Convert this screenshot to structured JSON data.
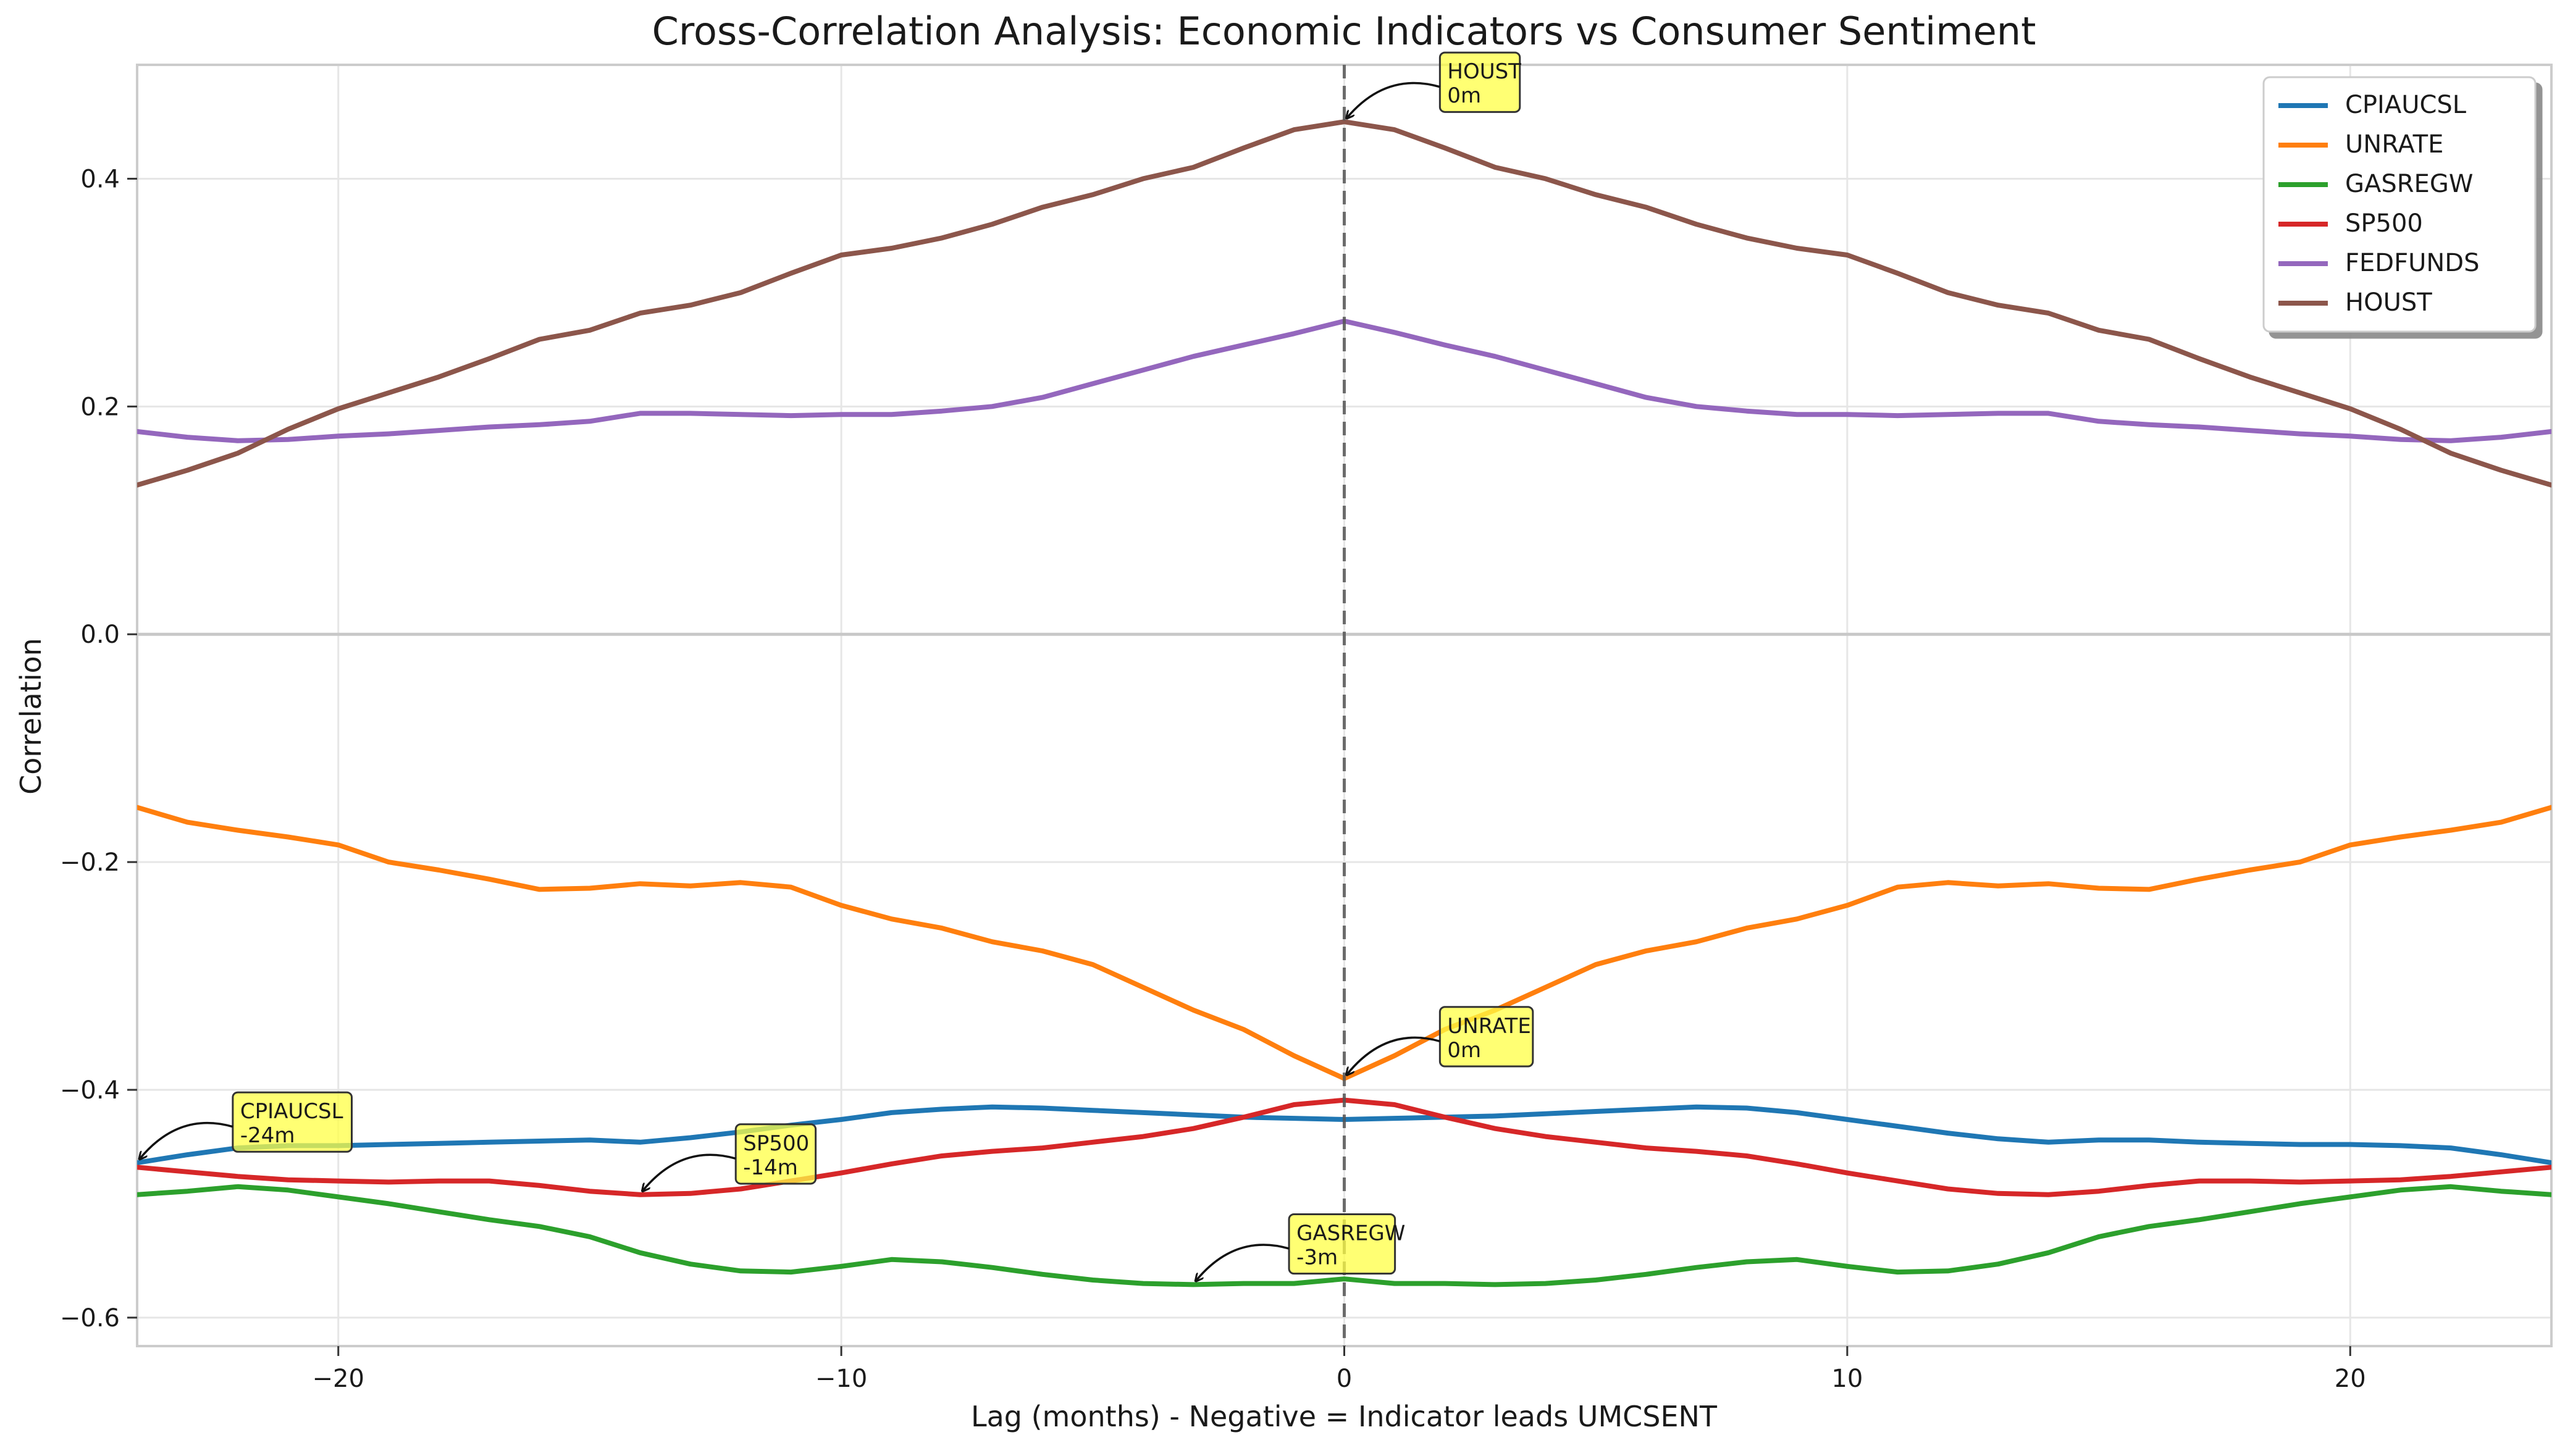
{
  "chart_data": {
    "type": "line",
    "title": "Cross-Correlation Analysis: Economic Indicators vs Consumer Sentiment",
    "xlabel": "Lag (months) - Negative = Indicator leads UMCSENT",
    "ylabel": "Correlation",
    "xlim": [
      -24,
      24
    ],
    "ylim": [
      -0.625,
      0.5
    ],
    "xticks": [
      -20,
      -10,
      0,
      10,
      20
    ],
    "xtick_labels": [
      "−20",
      "−10",
      "0",
      "10",
      "20"
    ],
    "yticks": [
      -0.6,
      -0.4,
      -0.2,
      0.0,
      0.2,
      0.4
    ],
    "ytick_labels": [
      "−0.6",
      "−0.4",
      "−0.2",
      "0.0",
      "0.2",
      "0.4"
    ],
    "grid": true,
    "zero_line": true,
    "vertical_line_at": 0,
    "legend_position": "top-right",
    "x": [
      -24,
      -23,
      -22,
      -21,
      -20,
      -19,
      -18,
      -17,
      -16,
      -15,
      -14,
      -13,
      -12,
      -11,
      -10,
      -9,
      -8,
      -7,
      -6,
      -5,
      -4,
      -3,
      -2,
      -1,
      0,
      1,
      2,
      3,
      4,
      5,
      6,
      7,
      8,
      9,
      10,
      11,
      12,
      13,
      14,
      15,
      16,
      17,
      18,
      19,
      20,
      21,
      22,
      23,
      24
    ],
    "series": [
      {
        "name": "CPIAUCSL",
        "color": "#1f77b4",
        "values": [
          -0.464,
          -0.457,
          -0.451,
          -0.449,
          -0.449,
          -0.448,
          -0.447,
          -0.446,
          -0.445,
          -0.444,
          -0.446,
          -0.442,
          -0.437,
          -0.431,
          -0.426,
          -0.42,
          -0.417,
          -0.415,
          -0.416,
          -0.418,
          -0.42,
          -0.422,
          -0.424,
          -0.425,
          -0.426,
          -0.425,
          -0.424,
          -0.423,
          -0.421,
          -0.419,
          -0.417,
          -0.415,
          -0.416,
          -0.42,
          -0.426,
          -0.432,
          -0.438,
          -0.443,
          -0.446,
          -0.444,
          -0.444,
          -0.446,
          -0.447,
          -0.448,
          -0.448,
          -0.449,
          -0.451,
          -0.457,
          -0.464
        ]
      },
      {
        "name": "UNRATE",
        "color": "#ff7f0e",
        "values": [
          -0.152,
          -0.165,
          -0.172,
          -0.178,
          -0.185,
          -0.2,
          -0.207,
          -0.215,
          -0.224,
          -0.223,
          -0.219,
          -0.221,
          -0.218,
          -0.222,
          -0.238,
          -0.25,
          -0.258,
          -0.27,
          -0.278,
          -0.29,
          -0.31,
          -0.33,
          -0.347,
          -0.37,
          -0.39,
          -0.37,
          -0.347,
          -0.33,
          -0.31,
          -0.29,
          -0.278,
          -0.27,
          -0.258,
          -0.25,
          -0.238,
          -0.222,
          -0.218,
          -0.221,
          -0.219,
          -0.223,
          -0.224,
          -0.215,
          -0.207,
          -0.2,
          -0.185,
          -0.178,
          -0.172,
          -0.165,
          -0.152
        ]
      },
      {
        "name": "GASREGW",
        "color": "#2ca02c",
        "values": [
          -0.492,
          -0.489,
          -0.485,
          -0.488,
          -0.494,
          -0.5,
          -0.507,
          -0.514,
          -0.52,
          -0.529,
          -0.543,
          -0.553,
          -0.559,
          -0.56,
          -0.555,
          -0.549,
          -0.551,
          -0.556,
          -0.562,
          -0.567,
          -0.57,
          -0.571,
          -0.57,
          -0.57,
          -0.566,
          -0.57,
          -0.57,
          -0.571,
          -0.57,
          -0.567,
          -0.562,
          -0.556,
          -0.551,
          -0.549,
          -0.555,
          -0.56,
          -0.559,
          -0.553,
          -0.543,
          -0.529,
          -0.52,
          -0.514,
          -0.507,
          -0.5,
          -0.494,
          -0.488,
          -0.485,
          -0.489,
          -0.492
        ]
      },
      {
        "name": "SP500",
        "color": "#d62728",
        "values": [
          -0.468,
          -0.472,
          -0.476,
          -0.479,
          -0.48,
          -0.481,
          -0.48,
          -0.48,
          -0.484,
          -0.489,
          -0.492,
          -0.491,
          -0.487,
          -0.48,
          -0.473,
          -0.465,
          -0.458,
          -0.454,
          -0.451,
          -0.446,
          -0.441,
          -0.434,
          -0.424,
          -0.413,
          -0.409,
          -0.413,
          -0.424,
          -0.434,
          -0.441,
          -0.446,
          -0.451,
          -0.454,
          -0.458,
          -0.465,
          -0.473,
          -0.48,
          -0.487,
          -0.491,
          -0.492,
          -0.489,
          -0.484,
          -0.48,
          -0.48,
          -0.481,
          -0.48,
          -0.479,
          -0.476,
          -0.472,
          -0.468
        ]
      },
      {
        "name": "FEDFUNDS",
        "color": "#9467bd",
        "values": [
          0.178,
          0.173,
          0.17,
          0.171,
          0.174,
          0.176,
          0.179,
          0.182,
          0.184,
          0.187,
          0.194,
          0.194,
          0.193,
          0.192,
          0.193,
          0.193,
          0.196,
          0.2,
          0.208,
          0.22,
          0.232,
          0.244,
          0.254,
          0.264,
          0.275,
          0.265,
          0.254,
          0.244,
          0.232,
          0.22,
          0.208,
          0.2,
          0.196,
          0.193,
          0.193,
          0.192,
          0.193,
          0.194,
          0.194,
          0.187,
          0.184,
          0.182,
          0.179,
          0.176,
          0.174,
          0.171,
          0.17,
          0.173,
          0.178
        ]
      },
      {
        "name": "HOUST",
        "color": "#8c564b",
        "values": [
          0.131,
          0.144,
          0.159,
          0.18,
          0.198,
          0.212,
          0.226,
          0.242,
          0.259,
          0.267,
          0.282,
          0.289,
          0.3,
          0.317,
          0.333,
          0.339,
          0.348,
          0.36,
          0.375,
          0.386,
          0.4,
          0.41,
          0.427,
          0.443,
          0.45,
          0.443,
          0.427,
          0.41,
          0.4,
          0.386,
          0.375,
          0.36,
          0.348,
          0.339,
          0.333,
          0.317,
          0.3,
          0.289,
          0.282,
          0.267,
          0.259,
          0.242,
          0.226,
          0.212,
          0.198,
          0.18,
          0.159,
          0.144,
          0.131
        ]
      }
    ],
    "annotations": [
      {
        "series": "HOUST",
        "line1": "HOUST",
        "line2": "0m",
        "x": 0,
        "y": 0.45,
        "text_x": 2.0,
        "text_y": 0.488
      },
      {
        "series": "UNRATE",
        "line1": "UNRATE",
        "line2": "0m",
        "x": 0,
        "y": -0.39,
        "text_x": 2.0,
        "text_y": -0.35
      },
      {
        "series": "CPIAUCSL",
        "line1": "CPIAUCSL",
        "line2": "-24m",
        "x": -24,
        "y": -0.464,
        "text_x": -22.0,
        "text_y": -0.425
      },
      {
        "series": "SP500",
        "line1": "SP500",
        "line2": "-14m",
        "x": -14,
        "y": -0.492,
        "text_x": -12.0,
        "text_y": -0.453
      },
      {
        "series": "GASREGW",
        "line1": "GASREGW",
        "line2": "-3m",
        "x": -3,
        "y": -0.571,
        "text_x": -1.0,
        "text_y": -0.532
      }
    ],
    "annotation_box_color": "#ffff44"
  }
}
